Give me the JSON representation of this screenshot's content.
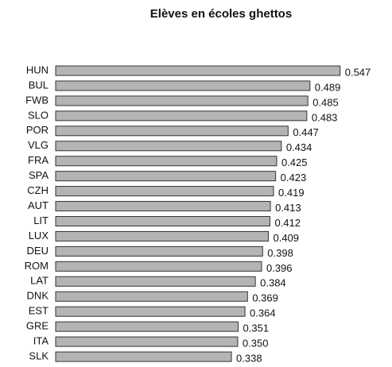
{
  "chart_data": {
    "type": "bar",
    "orientation": "horizontal",
    "title": "Elèves en écoles ghettos",
    "categories": [
      "HUN",
      "BUL",
      "FWB",
      "SLO",
      "POR",
      "VLG",
      "FRA",
      "SPA",
      "CZH",
      "AUT",
      "LIT",
      "LUX",
      "DEU",
      "ROM",
      "LAT",
      "DNK",
      "EST",
      "GRE",
      "ITA",
      "SLK"
    ],
    "values": [
      0.547,
      0.489,
      0.485,
      0.483,
      0.447,
      0.434,
      0.425,
      0.423,
      0.419,
      0.413,
      0.412,
      0.409,
      0.398,
      0.396,
      0.384,
      0.369,
      0.364,
      0.351,
      0.35,
      0.338
    ],
    "value_labels": [
      "0.547",
      "0.489",
      "0.485",
      "0.483",
      "0.447",
      "0.434",
      "0.425",
      "0.423",
      "0.419",
      "0.413",
      "0.412",
      "0.409",
      "0.398",
      "0.396",
      "0.384",
      "0.369",
      "0.364",
      "0.351",
      "0.350",
      "0.338"
    ],
    "color": "#b4b4b4"
  }
}
